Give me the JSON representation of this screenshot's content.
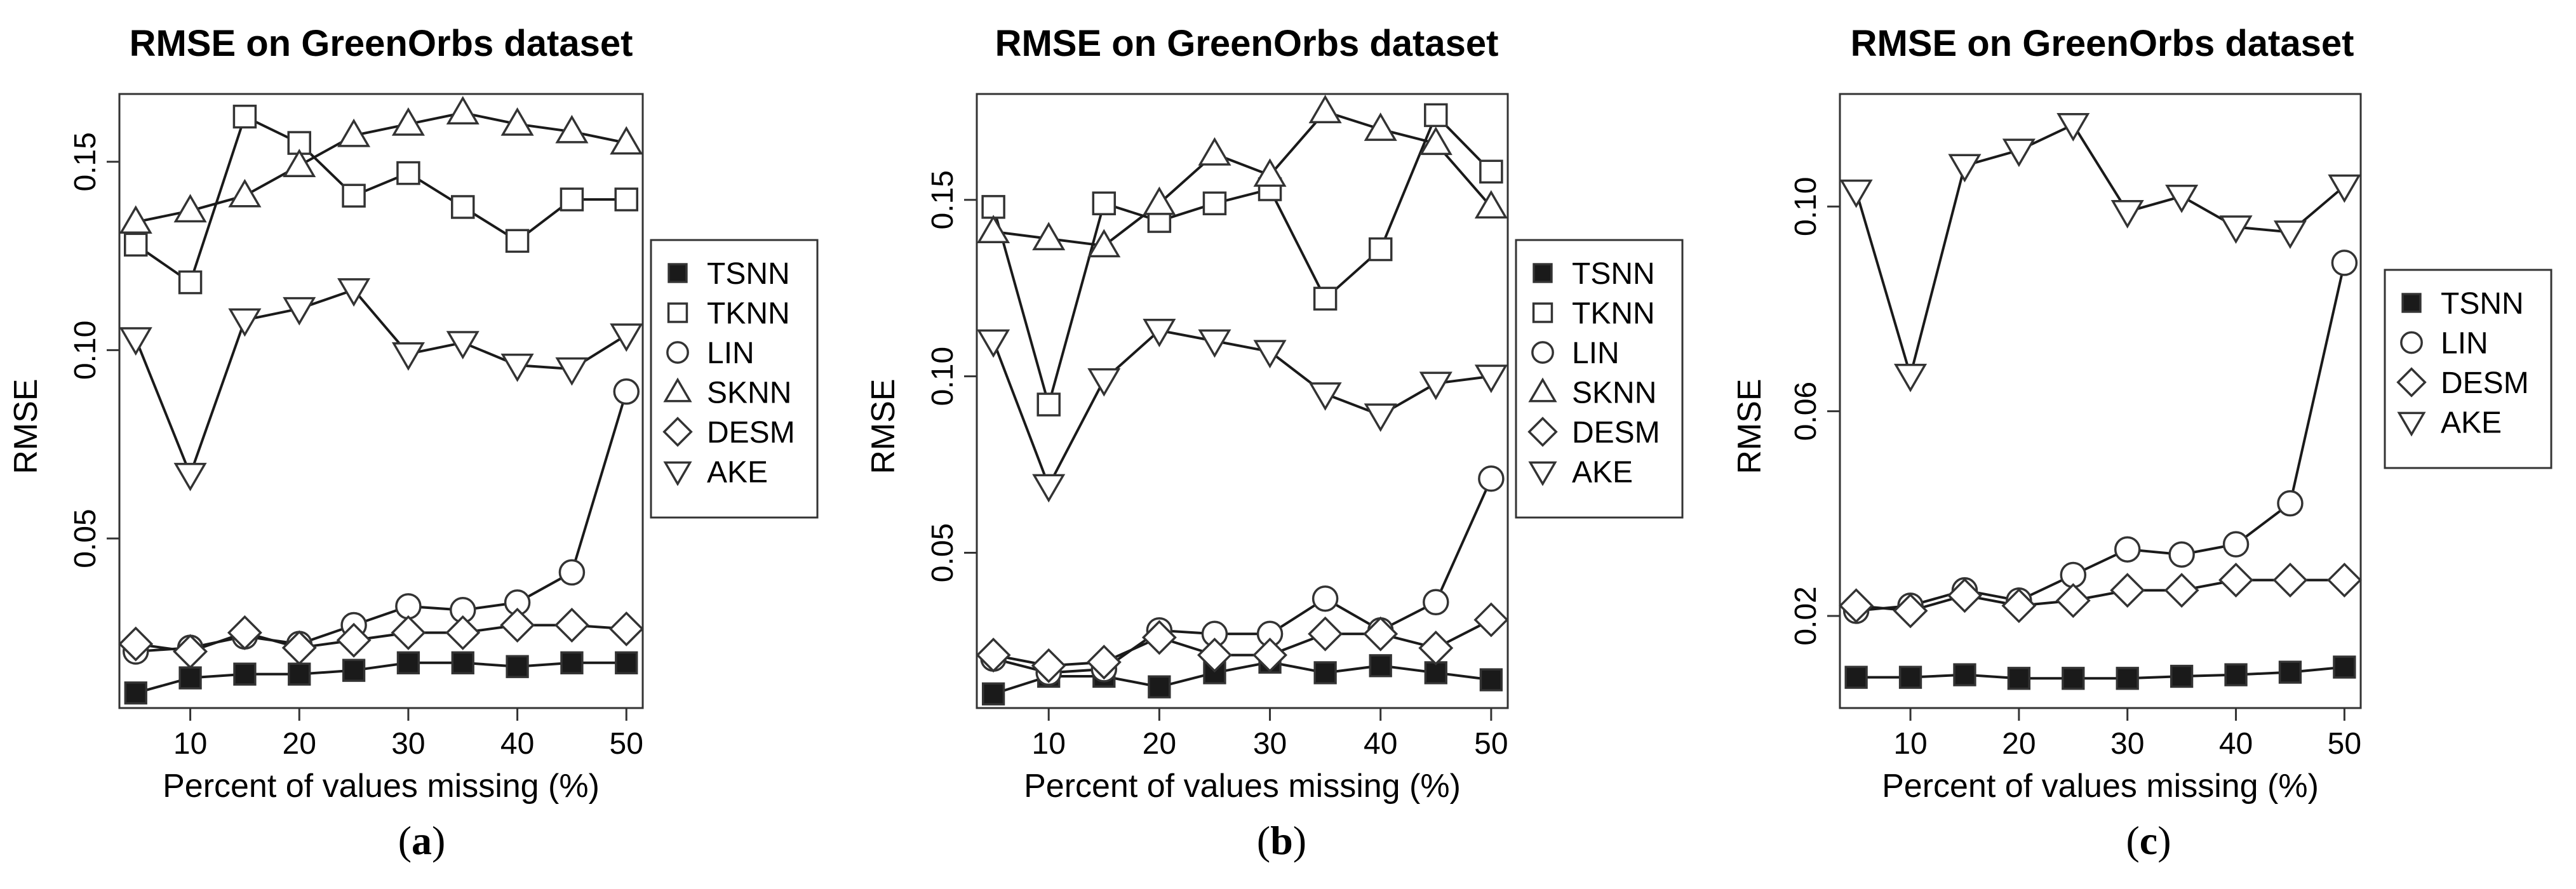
{
  "chart_data": [
    {
      "type": "line",
      "panel_caption": "(a)",
      "caption_letter": "a",
      "title": "RMSE on GreenOrbs dataset",
      "xlabel": "Percent of values missing (%)",
      "ylabel": "RMSE",
      "x": [
        5,
        10,
        15,
        20,
        25,
        30,
        35,
        40,
        45,
        50
      ],
      "xlim": [
        3.5,
        51.5
      ],
      "ylim": [
        0.005,
        0.168
      ],
      "xticks": [
        10,
        20,
        30,
        40,
        50
      ],
      "yticks": [
        0.05,
        0.1,
        0.15
      ],
      "ytick_labels": [
        "0.05",
        "0.10",
        "0.15"
      ],
      "legend_position": "right",
      "series": [
        {
          "name": "TSNN",
          "marker": "filled-square",
          "values": [
            0.009,
            0.013,
            0.014,
            0.014,
            0.015,
            0.017,
            0.017,
            0.016,
            0.017,
            0.017
          ]
        },
        {
          "name": "TKNN",
          "marker": "open-square",
          "values": [
            0.128,
            0.118,
            0.162,
            0.155,
            0.141,
            0.147,
            0.138,
            0.129,
            0.14,
            0.14
          ]
        },
        {
          "name": "LIN",
          "marker": "open-circle",
          "values": [
            0.02,
            0.021,
            0.024,
            0.022,
            0.027,
            0.032,
            0.031,
            0.033,
            0.041,
            0.089
          ]
        },
        {
          "name": "SKNN",
          "marker": "triangle-up",
          "values": [
            0.134,
            0.137,
            0.141,
            0.149,
            0.157,
            0.16,
            0.163,
            0.16,
            0.158,
            0.155
          ]
        },
        {
          "name": "DESM",
          "marker": "diamond",
          "values": [
            0.022,
            0.02,
            0.025,
            0.021,
            0.023,
            0.025,
            0.025,
            0.027,
            0.027,
            0.026
          ]
        },
        {
          "name": "AKE",
          "marker": "triangle-down",
          "values": [
            0.103,
            0.067,
            0.108,
            0.111,
            0.116,
            0.099,
            0.102,
            0.096,
            0.095,
            0.104
          ]
        }
      ]
    },
    {
      "type": "line",
      "panel_caption": "(b)",
      "caption_letter": "b",
      "title": "RMSE on GreenOrbs dataset",
      "xlabel": "Percent of values missing (%)",
      "ylabel": "RMSE",
      "x": [
        5,
        10,
        15,
        20,
        25,
        30,
        35,
        40,
        45,
        50
      ],
      "xlim": [
        3.5,
        51.5
      ],
      "ylim": [
        0.006,
        0.18
      ],
      "xticks": [
        10,
        20,
        30,
        40,
        50
      ],
      "yticks": [
        0.05,
        0.1,
        0.15
      ],
      "ytick_labels": [
        "0.05",
        "0.10",
        "0.15"
      ],
      "legend_position": "right",
      "series": [
        {
          "name": "TSNN",
          "marker": "filled-square",
          "values": [
            0.01,
            0.015,
            0.015,
            0.012,
            0.016,
            0.019,
            0.016,
            0.018,
            0.016,
            0.014
          ]
        },
        {
          "name": "TKNN",
          "marker": "open-square",
          "values": [
            0.148,
            0.092,
            0.149,
            0.144,
            0.149,
            0.153,
            0.122,
            0.136,
            0.174,
            0.158
          ]
        },
        {
          "name": "LIN",
          "marker": "open-circle",
          "values": [
            0.02,
            0.016,
            0.017,
            0.028,
            0.027,
            0.027,
            0.037,
            0.028,
            0.036,
            0.071
          ]
        },
        {
          "name": "SKNN",
          "marker": "triangle-up",
          "values": [
            0.141,
            0.139,
            0.137,
            0.149,
            0.163,
            0.157,
            0.175,
            0.17,
            0.166,
            0.148
          ]
        },
        {
          "name": "DESM",
          "marker": "diamond",
          "values": [
            0.021,
            0.018,
            0.019,
            0.026,
            0.021,
            0.021,
            0.027,
            0.027,
            0.023,
            0.031
          ]
        },
        {
          "name": "AKE",
          "marker": "triangle-down",
          "values": [
            0.11,
            0.069,
            0.099,
            0.113,
            0.11,
            0.107,
            0.095,
            0.089,
            0.098,
            0.1
          ]
        }
      ]
    },
    {
      "type": "line",
      "panel_caption": "(c)",
      "caption_letter": "c",
      "title": "RMSE on GreenOrbs dataset",
      "xlabel": "Percent of values missing (%)",
      "ylabel": "RMSE",
      "x": [
        5,
        10,
        15,
        20,
        25,
        30,
        35,
        40,
        45,
        50
      ],
      "xlim": [
        3.5,
        51.5
      ],
      "ylim": [
        0.002,
        0.122
      ],
      "xticks": [
        10,
        20,
        30,
        40,
        50
      ],
      "yticks": [
        0.02,
        0.06,
        0.1
      ],
      "ytick_labels": [
        "0.02",
        "0.06",
        "0.10"
      ],
      "legend_position": "right",
      "series": [
        {
          "name": "TSNN",
          "marker": "filled-square",
          "values": [
            0.008,
            0.008,
            0.0085,
            0.0078,
            0.0078,
            0.0078,
            0.0082,
            0.0085,
            0.009,
            0.01
          ]
        },
        {
          "name": "LIN",
          "marker": "open-circle",
          "values": [
            0.021,
            0.022,
            0.025,
            0.023,
            0.028,
            0.033,
            0.032,
            0.034,
            0.042,
            0.089
          ]
        },
        {
          "name": "DESM",
          "marker": "diamond",
          "values": [
            0.022,
            0.021,
            0.024,
            0.022,
            0.023,
            0.025,
            0.025,
            0.027,
            0.027,
            0.027
          ]
        },
        {
          "name": "AKE",
          "marker": "triangle-down",
          "values": [
            0.103,
            0.067,
            0.108,
            0.111,
            0.116,
            0.099,
            0.102,
            0.096,
            0.095,
            0.104
          ]
        }
      ]
    }
  ]
}
